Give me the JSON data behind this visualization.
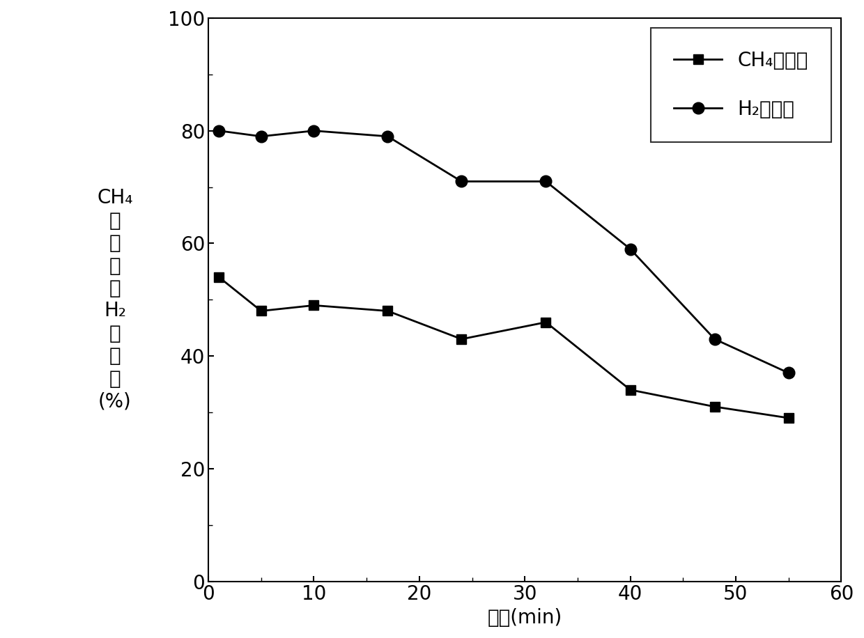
{
  "ch4_x": [
    1,
    5,
    10,
    17,
    24,
    32,
    40,
    48,
    55
  ],
  "ch4_y": [
    54,
    48,
    49,
    48,
    43,
    46,
    34,
    31,
    29
  ],
  "h2_x": [
    1,
    5,
    10,
    17,
    24,
    32,
    40,
    48,
    55
  ],
  "h2_y": [
    80,
    79,
    80,
    79,
    71,
    71,
    59,
    43,
    37
  ],
  "xlim": [
    0,
    60
  ],
  "ylim": [
    0,
    100
  ],
  "xticks": [
    0,
    10,
    20,
    30,
    40,
    50,
    60
  ],
  "yticks": [
    0,
    20,
    40,
    60,
    80,
    100
  ],
  "xlabel": "时间(min)",
  "ylabel_line1": "CH₄",
  "ylabel_line2": "转",
  "ylabel_line3": "化",
  "ylabel_line4": "率",
  "ylabel_line5": "或",
  "ylabel_line6": "H₂",
  "ylabel_line7": "选",
  "ylabel_line8": "择",
  "ylabel_line9": "性",
  "ylabel_line10": "(%)",
  "legend_ch4": "CH₄转化率",
  "legend_h2": "H₂选择性",
  "line_color": "#000000",
  "marker_square": "s",
  "marker_circle": "o",
  "markersize_sq": 10,
  "markersize_ci": 12,
  "linewidth": 2.0,
  "tick_fontsize": 20,
  "label_fontsize": 20,
  "legend_fontsize": 20,
  "ylabel_fontsize": 20
}
